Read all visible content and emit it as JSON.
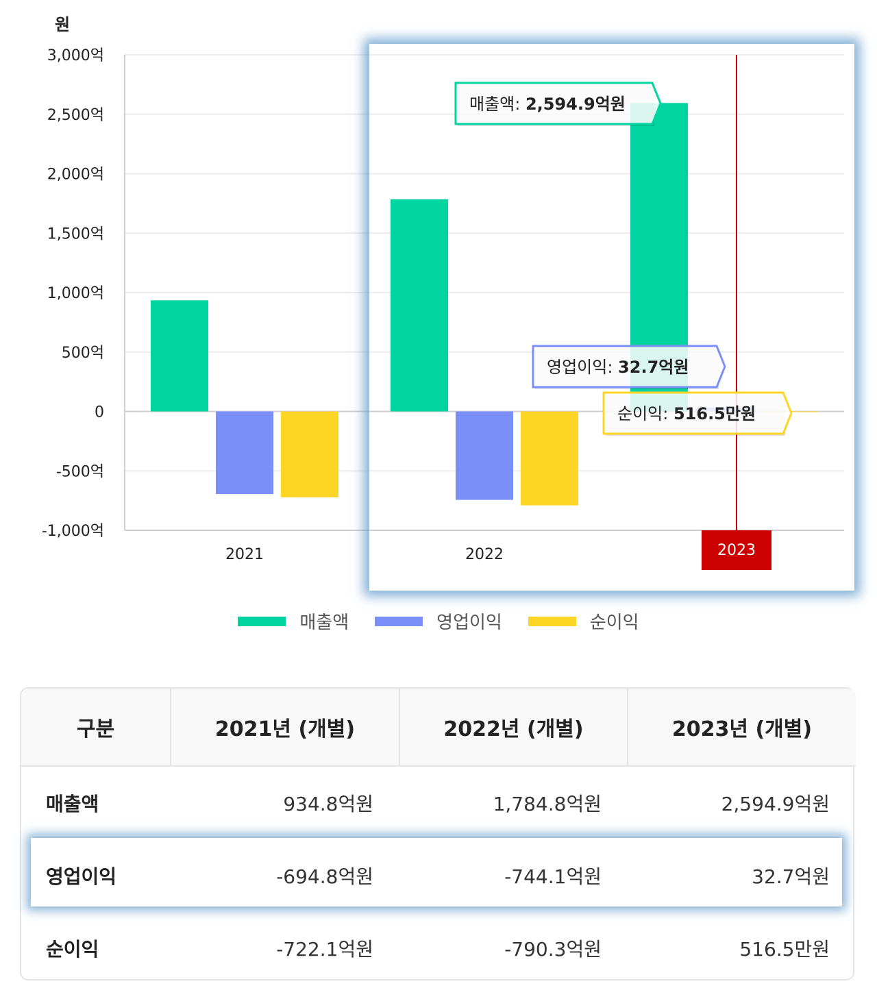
{
  "chart_data": {
    "type": "bar",
    "unit_label": "원",
    "categories": [
      "2021",
      "2022",
      "2023"
    ],
    "series": [
      {
        "name": "매출액",
        "color": "#00d4a0",
        "values": [
          934.8,
          1784.8,
          2594.9
        ]
      },
      {
        "name": "영업이익",
        "color": "#7b8ff8",
        "values": [
          -694.8,
          -744.1,
          32.7
        ]
      },
      {
        "name": "순이익",
        "color": "#fdd524",
        "values": [
          -722.1,
          -790.3,
          0.05165
        ]
      }
    ],
    "ylim": [
      -1000,
      3000
    ],
    "yticks": [
      {
        "value": 3000,
        "label": "3,000억"
      },
      {
        "value": 2500,
        "label": "2,500억"
      },
      {
        "value": 2000,
        "label": "2,000억"
      },
      {
        "value": 1500,
        "label": "1,500억"
      },
      {
        "value": 1000,
        "label": "1,000억"
      },
      {
        "value": 500,
        "label": "500억"
      },
      {
        "value": 0,
        "label": "0"
      },
      {
        "value": -500,
        "label": "-500억"
      },
      {
        "value": -1000,
        "label": "-1,000억"
      }
    ],
    "grid": true,
    "legend": "bottom-center",
    "highlight_category": "2023",
    "tooltips": [
      {
        "label": "매출액: ",
        "value": "2,594.9억원",
        "color": "#00d4a0"
      },
      {
        "label": "영업이익: ",
        "value": "32.7억원",
        "color": "#7b8ff8"
      },
      {
        "label": "순이익: ",
        "value": "516.5만원",
        "color": "#fdd524"
      }
    ]
  },
  "table": {
    "headers": [
      "구분",
      "2021년 (개별)",
      "2022년 (개별)",
      "2023년 (개별)"
    ],
    "rows": [
      {
        "label": "매출액",
        "values": [
          "934.8억원",
          "1,784.8억원",
          "2,594.9억원"
        ]
      },
      {
        "label": "영업이익",
        "values": [
          "-694.8억원",
          "-744.1억원",
          "32.7억원"
        ]
      },
      {
        "label": "순이익",
        "values": [
          "-722.1억원",
          "-790.3억원",
          "516.5만원"
        ]
      }
    ]
  }
}
